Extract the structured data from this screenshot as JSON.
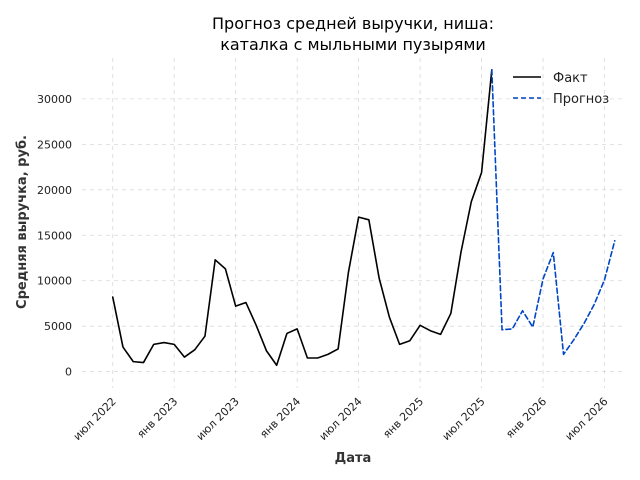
{
  "chart_data": {
    "type": "line",
    "title_lines": [
      "Прогноз средней выручки, ниша:",
      "каталка с мыльными пузырями"
    ],
    "xlabel": "Дата",
    "ylabel": "Средняя выручка, руб.",
    "x_tick_labels": [
      "июл 2022",
      "янв 2023",
      "июл 2023",
      "янв 2024",
      "июл 2024",
      "янв 2025",
      "июл 2025",
      "янв 2026",
      "июл 2026"
    ],
    "y_ticks": [
      0,
      5000,
      10000,
      15000,
      20000,
      25000,
      30000
    ],
    "y_tick_labels": [
      "0",
      "5000",
      "10000",
      "15000",
      "20000",
      "25000",
      "30000"
    ],
    "xlim": [
      "2022-04",
      "2026-09"
    ],
    "ylim": [
      -1800,
      34500
    ],
    "grid": true,
    "legend_position": "top-right",
    "series": [
      {
        "name": "Факт",
        "color": "#000000",
        "style": "solid",
        "points": [
          [
            "2022-07",
            8200
          ],
          [
            "2022-08",
            2700
          ],
          [
            "2022-09",
            1100
          ],
          [
            "2022-10",
            1000
          ],
          [
            "2022-11",
            3000
          ],
          [
            "2022-12",
            3200
          ],
          [
            "2023-01",
            3000
          ],
          [
            "2023-02",
            1600
          ],
          [
            "2023-03",
            2400
          ],
          [
            "2023-04",
            3900
          ],
          [
            "2023-05",
            12300
          ],
          [
            "2023-06",
            11300
          ],
          [
            "2023-07",
            7200
          ],
          [
            "2023-08",
            7600
          ],
          [
            "2023-09",
            5100
          ],
          [
            "2023-10",
            2300
          ],
          [
            "2023-11",
            700
          ],
          [
            "2023-12",
            4200
          ],
          [
            "2024-01",
            4700
          ],
          [
            "2024-02",
            1500
          ],
          [
            "2024-03",
            1500
          ],
          [
            "2024-04",
            1900
          ],
          [
            "2024-05",
            2500
          ],
          [
            "2024-06",
            10900
          ],
          [
            "2024-07",
            17000
          ],
          [
            "2024-08",
            16700
          ],
          [
            "2024-09",
            10300
          ],
          [
            "2024-10",
            6000
          ],
          [
            "2024-11",
            3000
          ],
          [
            "2024-12",
            3400
          ],
          [
            "2025-01",
            5100
          ],
          [
            "2025-02",
            4500
          ],
          [
            "2025-03",
            4100
          ],
          [
            "2025-04",
            6400
          ],
          [
            "2025-05",
            13200
          ],
          [
            "2025-06",
            18700
          ],
          [
            "2025-07",
            21900
          ],
          [
            "2025-08",
            33200
          ]
        ]
      },
      {
        "name": "Прогноз",
        "color": "#0046c8",
        "style": "dashed",
        "points": [
          [
            "2025-08",
            33200
          ],
          [
            "2025-09",
            4600
          ],
          [
            "2025-10",
            4700
          ],
          [
            "2025-11",
            6700
          ],
          [
            "2025-12",
            4900
          ],
          [
            "2026-01",
            10200
          ],
          [
            "2026-02",
            13100
          ],
          [
            "2026-03",
            1900
          ],
          [
            "2026-04",
            3500
          ],
          [
            "2026-05",
            5300
          ],
          [
            "2026-06",
            7400
          ],
          [
            "2026-07",
            10100
          ],
          [
            "2026-08",
            14400
          ]
        ]
      }
    ]
  }
}
